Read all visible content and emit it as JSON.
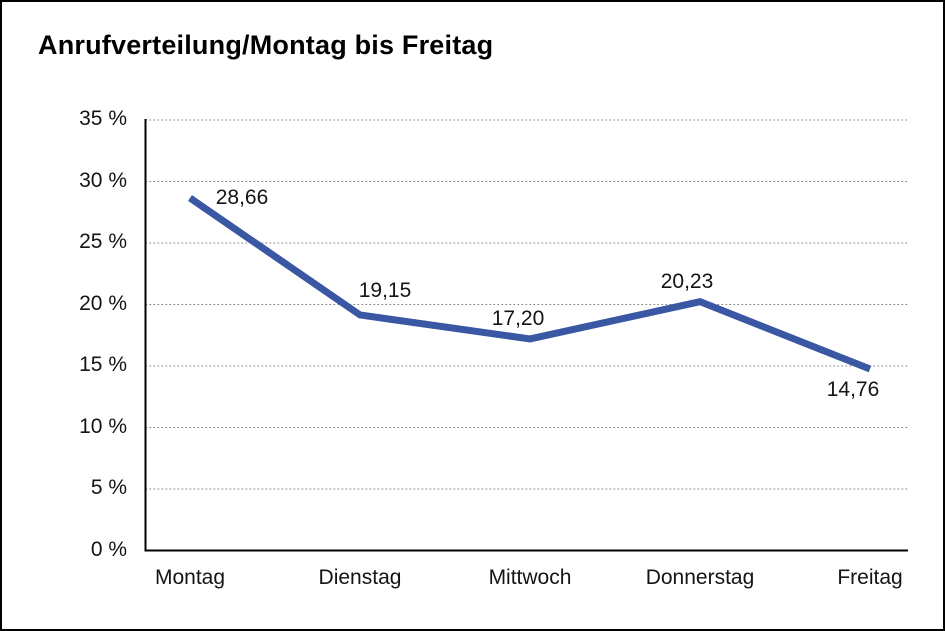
{
  "chart_data": {
    "type": "line",
    "title": "Anrufverteilung/Montag bis Freitag",
    "categories": [
      "Montag",
      "Dienstag",
      "Mittwoch",
      "Donnerstag",
      "Freitag"
    ],
    "values": [
      28.66,
      19.15,
      17.2,
      20.23,
      14.76
    ],
    "point_labels": [
      "28,66",
      "19,15",
      "17,20",
      "20,23",
      "14,76"
    ],
    "yticks": [
      0,
      5,
      10,
      15,
      20,
      25,
      30,
      35
    ],
    "ytick_labels": [
      "0 %",
      "5 %",
      "10 %",
      "15 %",
      "20 %",
      "25 %",
      "30 %",
      "35 %"
    ],
    "ylim": [
      0,
      35
    ],
    "unit": "%",
    "xlabel": "",
    "ylabel": "",
    "legend": "none",
    "grid": "horizontal-dotted",
    "colors": {
      "line": "#3A57A3",
      "axis": "#000000",
      "gridline": "#7d7d7d",
      "text": "#141414",
      "background": "#ffffff"
    }
  }
}
